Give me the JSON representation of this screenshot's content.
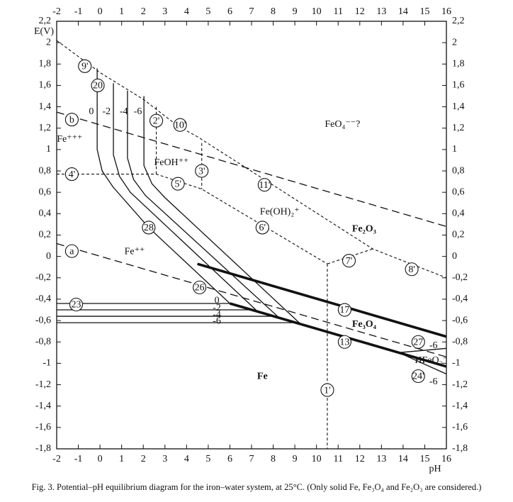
{
  "chart_data": {
    "type": "line",
    "y_label": "E(V)",
    "x_label": "pH",
    "caption": "Fig. 3. Potential–pH equilibrium diagram for the iron–water system, at 25°C. (Only solid Fe, Fe₃O₄ and Fe₂O₃ are considered.)",
    "xlim": [
      -2,
      16
    ],
    "ylim": [
      -1.8,
      2.2
    ],
    "xticks": [
      -2,
      -1,
      0,
      1,
      2,
      3,
      4,
      5,
      6,
      7,
      8,
      9,
      10,
      11,
      12,
      13,
      14,
      15,
      16
    ],
    "yticks": [
      {
        "value": 2.2,
        "label": "2,2"
      },
      2,
      {
        "value": 1.8,
        "label": "1,8"
      },
      {
        "value": 1.6,
        "label": "1,6"
      },
      {
        "value": 1.4,
        "label": "1,4"
      },
      {
        "value": 1.2,
        "label": "1,2"
      },
      1,
      {
        "value": 0.8,
        "label": "0,8"
      },
      {
        "value": 0.6,
        "label": "0,6"
      },
      {
        "value": 0.4,
        "label": "0,4"
      },
      {
        "value": 0.2,
        "label": "0,2"
      },
      0,
      {
        "value": -0.2,
        "label": "-0,2"
      },
      {
        "value": -0.4,
        "label": "-0,4"
      },
      {
        "value": -0.6,
        "label": "-0,6"
      },
      {
        "value": -0.8,
        "label": "-0,8"
      },
      -1,
      {
        "value": -1.2,
        "label": "-1,2"
      },
      {
        "value": -1.4,
        "label": "-1,4"
      },
      {
        "value": -1.6,
        "label": "-1,6"
      },
      {
        "value": -1.8,
        "label": "-1,8"
      }
    ],
    "grid": false,
    "color": "#111111",
    "lines": [
      {
        "style": "long-dash",
        "x": [
          -2,
          16
        ],
        "values": [
          0.12,
          -0.94
        ]
      },
      {
        "style": "long-dash",
        "x": [
          -2,
          16
        ],
        "values": [
          1.35,
          0.28
        ]
      },
      {
        "style": "dash",
        "x": [
          -2,
          0,
          2,
          3.6,
          4.5,
          12.6,
          16
        ],
        "values": [
          2.02,
          1.72,
          1.47,
          1.22,
          1.12,
          0.07,
          -0.2
        ]
      },
      {
        "style": "dash",
        "x": [
          -2,
          2.6,
          4.7,
          10.5
        ],
        "values": [
          0.77,
          0.77,
          0.63,
          -0.07
        ]
      },
      {
        "style": "dash",
        "x": [
          2.6,
          2.6
        ],
        "values": [
          1.4,
          0.77
        ]
      },
      {
        "style": "dash",
        "x": [
          4.7,
          4.7
        ],
        "values": [
          1.06,
          0.63
        ]
      },
      {
        "style": "dash",
        "x": [
          10.5,
          12.6
        ],
        "values": [
          -0.07,
          0.07
        ]
      },
      {
        "style": "dash",
        "x": [
          10.5,
          10.5
        ],
        "values": [
          -0.07,
          -1.8
        ]
      },
      {
        "style": "solid",
        "x": [
          -0.13,
          -0.13,
          0.1,
          0.6,
          2.25,
          6
        ],
        "values": [
          1.76,
          1.0,
          0.8,
          0.65,
          0.27,
          -0.44
        ]
      },
      {
        "style": "solid",
        "x": [
          0.62,
          0.62,
          0.9,
          1.4,
          7.2
        ],
        "values": [
          1.62,
          0.95,
          0.75,
          0.6,
          -0.5
        ]
      },
      {
        "style": "solid",
        "x": [
          1.27,
          1.27,
          1.55,
          2.1,
          8.2
        ],
        "values": [
          1.55,
          0.92,
          0.72,
          0.57,
          -0.56
        ]
      },
      {
        "style": "solid",
        "x": [
          2.03,
          2.03,
          2.4,
          3,
          9.2
        ],
        "values": [
          1.5,
          0.85,
          0.68,
          0.55,
          -0.62
        ]
      },
      {
        "style": "solid",
        "x": [
          -2,
          6
        ],
        "values": [
          -0.44,
          -0.44
        ]
      },
      {
        "style": "solid",
        "x": [
          -2,
          7.2
        ],
        "values": [
          -0.5,
          -0.5
        ]
      },
      {
        "style": "solid",
        "x": [
          -2,
          8.2
        ],
        "values": [
          -0.56,
          -0.56
        ]
      },
      {
        "style": "solid",
        "x": [
          -2,
          9.2
        ],
        "values": [
          -0.62,
          -0.62
        ]
      },
      {
        "style": "thick",
        "x": [
          4.5,
          16
        ],
        "values": [
          -0.07,
          -0.75
        ]
      },
      {
        "style": "thick",
        "x": [
          6,
          16
        ],
        "values": [
          -0.44,
          -1.03
        ]
      },
      {
        "style": "solid",
        "x": [
          13.8,
          16
        ],
        "values": [
          -0.9,
          -0.86
        ]
      },
      {
        "style": "solid",
        "x": [
          13.8,
          16
        ],
        "values": [
          -0.9,
          -1.1
        ]
      }
    ],
    "annotations": [
      {
        "text": "Fe⁺⁺⁺",
        "x": -1.4,
        "y": 1.1
      },
      {
        "text": "FeOH⁺⁺",
        "x": 3.3,
        "y": 0.88
      },
      {
        "text": "FeO₄⁻⁻?",
        "x": 11.2,
        "y": 1.24
      },
      {
        "text": "Fe(OH)₂⁺",
        "x": 8.3,
        "y": 0.42
      },
      {
        "text": "Fe₂O₃",
        "x": 12.2,
        "y": 0.26,
        "bold": true
      },
      {
        "text": "Fe⁺⁺",
        "x": 1.6,
        "y": 0.05
      },
      {
        "text": "Fe₃O₄",
        "x": 12.2,
        "y": -0.63,
        "bold": true
      },
      {
        "text": "Fe",
        "x": 7.5,
        "y": -1.12,
        "bold": true
      },
      {
        "text": "HFeO₂⁻",
        "x": 15.3,
        "y": -0.97
      },
      {
        "text": "9'",
        "x": -0.7,
        "y": 1.78,
        "circled": true
      },
      {
        "text": "20",
        "x": -0.1,
        "y": 1.6,
        "circled": true
      },
      {
        "text": "b",
        "x": -1.3,
        "y": 1.28,
        "circled": true
      },
      {
        "text": "2'",
        "x": 2.6,
        "y": 1.27,
        "circled": true
      },
      {
        "text": "10'",
        "x": 3.7,
        "y": 1.23,
        "circled": true
      },
      {
        "text": "4'",
        "x": -1.3,
        "y": 0.77,
        "circled": true
      },
      {
        "text": "3'",
        "x": 4.7,
        "y": 0.8,
        "circled": true
      },
      {
        "text": "5'",
        "x": 3.6,
        "y": 0.68,
        "circled": true
      },
      {
        "text": "11'",
        "x": 7.6,
        "y": 0.67,
        "circled": true
      },
      {
        "text": "28",
        "x": 2.25,
        "y": 0.27,
        "circled": true
      },
      {
        "text": "6'",
        "x": 7.5,
        "y": 0.27,
        "circled": true
      },
      {
        "text": "a",
        "x": -1.3,
        "y": 0.05,
        "circled": true
      },
      {
        "text": "7'",
        "x": 11.5,
        "y": -0.04,
        "circled": true
      },
      {
        "text": "8'",
        "x": 14.4,
        "y": -0.12,
        "circled": true
      },
      {
        "text": "26",
        "x": 4.6,
        "y": -0.29,
        "circled": true
      },
      {
        "text": "23",
        "x": -1.1,
        "y": -0.45,
        "circled": true
      },
      {
        "text": "17",
        "x": 11.3,
        "y": -0.5,
        "circled": true
      },
      {
        "text": "13",
        "x": 11.3,
        "y": -0.8,
        "circled": true
      },
      {
        "text": "27",
        "x": 14.7,
        "y": -0.8,
        "circled": true
      },
      {
        "text": "24'",
        "x": 14.7,
        "y": -1.12,
        "circled": true
      },
      {
        "text": "1'",
        "x": 10.5,
        "y": -1.25,
        "circled": true
      },
      {
        "text": "0",
        "x": -0.4,
        "y": 1.36
      },
      {
        "text": "-2",
        "x": 0.3,
        "y": 1.36
      },
      {
        "text": "-4",
        "x": 1.1,
        "y": 1.36
      },
      {
        "text": "-6",
        "x": 1.75,
        "y": 1.36
      },
      {
        "text": "0",
        "x": 5.4,
        "y": -0.41
      },
      {
        "text": "-2",
        "x": 5.4,
        "y": -0.48
      },
      {
        "text": "-4",
        "x": 5.4,
        "y": -0.54
      },
      {
        "text": "-6",
        "x": 5.4,
        "y": -0.6
      },
      {
        "text": "-6",
        "x": 15.4,
        "y": -0.83
      },
      {
        "text": "-6",
        "x": 15.4,
        "y": -1.17
      }
    ]
  }
}
